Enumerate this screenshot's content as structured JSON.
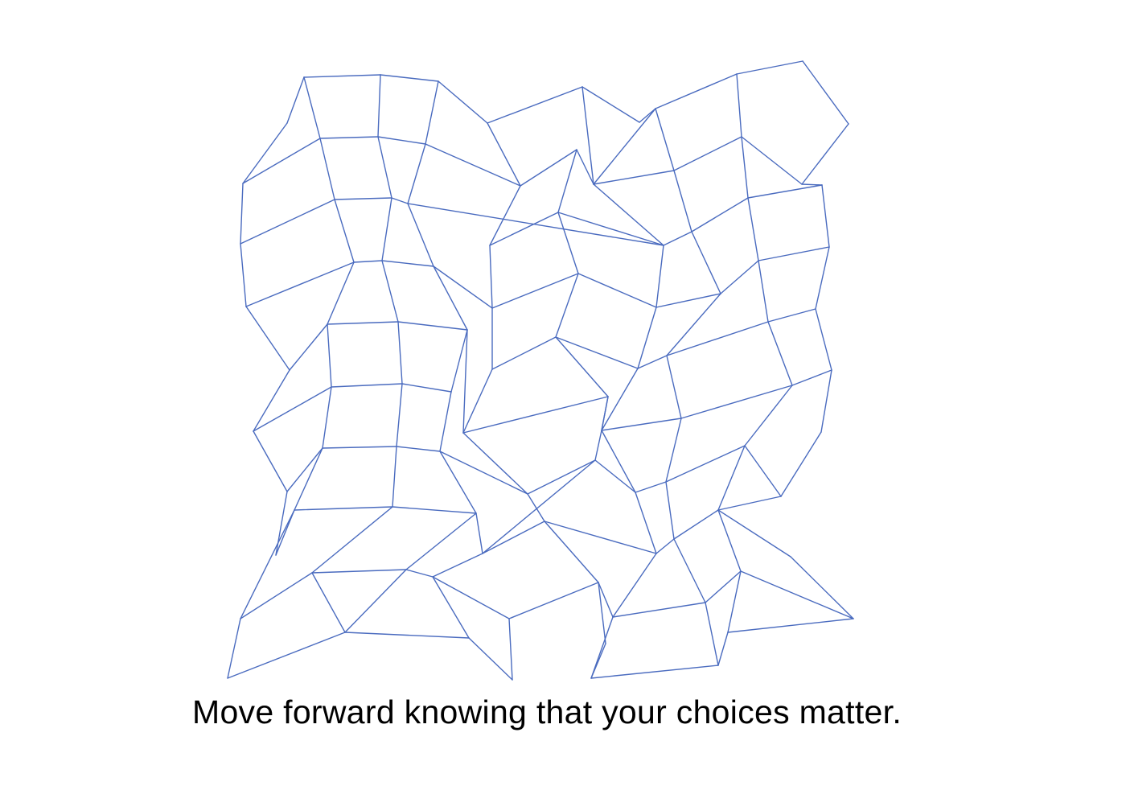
{
  "caption": "Move forward knowing that your choices matter.",
  "colors": {
    "mesh_stroke": "#4a6bbf",
    "background": "#ffffff",
    "caption_text": "#000000"
  }
}
